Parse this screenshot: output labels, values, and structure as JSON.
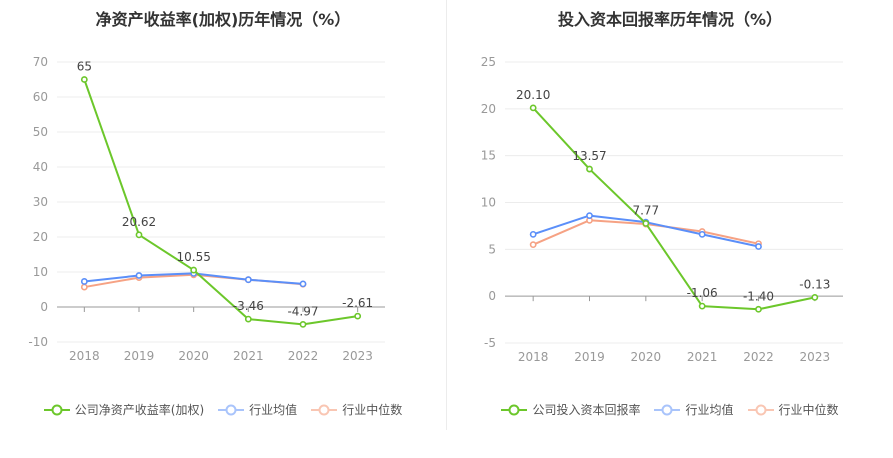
{
  "colors": {
    "company": "#6cc72b",
    "industry_avg": "#5b8ff9",
    "industry_median": "#f6a284"
  },
  "chart_data": [
    {
      "type": "line",
      "title": "净资产收益率(加权)历年情况（%）",
      "categories": [
        "2018",
        "2019",
        "2020",
        "2021",
        "2022",
        "2023"
      ],
      "ylim": [
        -10,
        70
      ],
      "yticks": [
        -10,
        0,
        10,
        20,
        30,
        40,
        50,
        60,
        70
      ],
      "grid": true,
      "legend_position": "bottom",
      "series": [
        {
          "name": "公司净资产收益率(加权)",
          "values": [
            65,
            20.62,
            10.55,
            -3.46,
            -4.97,
            -2.61
          ],
          "labels": [
            "65",
            "20.62",
            "10.55",
            "-3.46",
            "-4.97",
            "-2.61"
          ]
        },
        {
          "name": "行业均值",
          "values": [
            7.3,
            9.0,
            9.6,
            7.8,
            6.6,
            null
          ]
        },
        {
          "name": "行业中位数",
          "values": [
            5.7,
            8.4,
            9.2,
            7.8,
            6.5,
            null
          ]
        }
      ]
    },
    {
      "type": "line",
      "title": "投入资本回报率历年情况（%）",
      "categories": [
        "2018",
        "2019",
        "2020",
        "2021",
        "2022",
        "2023"
      ],
      "ylim": [
        -5,
        25
      ],
      "yticks": [
        -5,
        0,
        5,
        10,
        15,
        20,
        25
      ],
      "grid": true,
      "legend_position": "bottom",
      "series": [
        {
          "name": "公司投入资本回报率",
          "values": [
            20.1,
            13.57,
            7.77,
            -1.06,
            -1.4,
            -0.13
          ],
          "labels": [
            "20.10",
            "13.57",
            "7.77",
            "-1.06",
            "-1.40",
            "-0.13"
          ]
        },
        {
          "name": "行业均值",
          "values": [
            6.6,
            8.6,
            7.9,
            6.6,
            5.3,
            null
          ]
        },
        {
          "name": "行业中位数",
          "values": [
            5.5,
            8.1,
            7.7,
            6.9,
            5.6,
            null
          ]
        }
      ]
    }
  ]
}
